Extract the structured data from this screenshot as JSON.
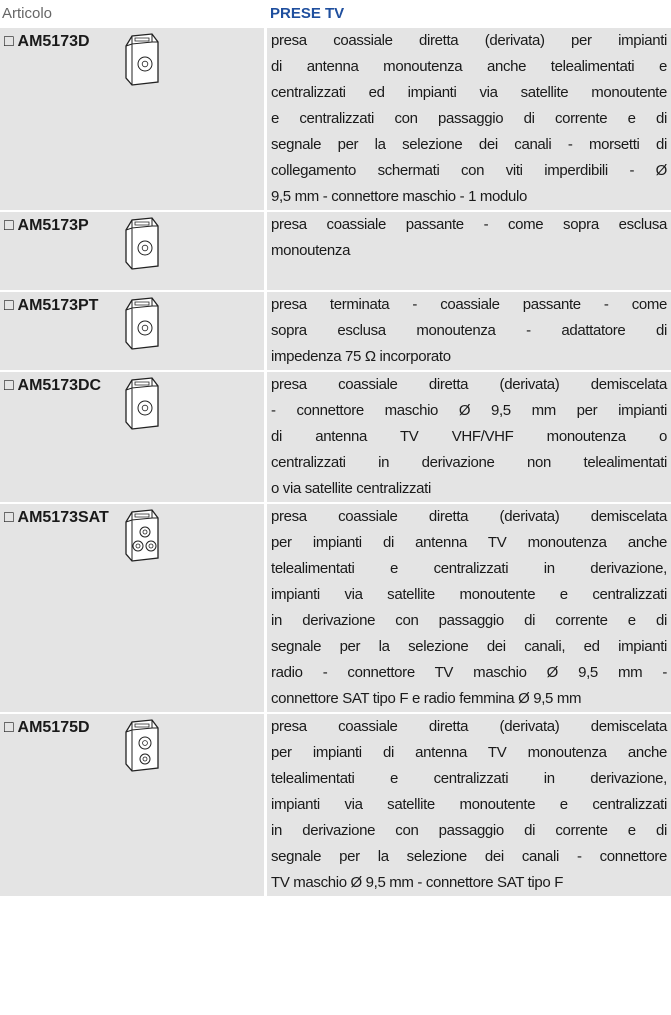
{
  "header": {
    "article_label": "Articolo",
    "section_title": "PRESE TV"
  },
  "rows": [
    {
      "code": "□ AM5173D",
      "description": [
        "presa coassiale diretta (derivata) per impianti",
        "di antenna monoutenza anche telealimentati e",
        "centralizzati ed impianti via satellite monoutente",
        "e centralizzati con passaggio di corrente e di",
        "segnale per la selezione dei canali - morsetti di",
        "collegamento schermati con viti imperdibili - Ø",
        "9,5 mm - connettore maschio - 1 modulo"
      ]
    },
    {
      "code": "□ AM5173P",
      "description": [
        "presa coassiale passante - come sopra esclusa",
        "monoutenza"
      ]
    },
    {
      "code": "□ AM5173PT",
      "description": [
        "presa terminata - coassiale passante - come",
        "sopra esclusa monoutenza - adattatore di",
        "impedenza 75 Ω incorporato"
      ]
    },
    {
      "code": "□ AM5173DC",
      "description": [
        "presa coassiale diretta (derivata) demiscelata",
        "- connettore maschio Ø 9,5 mm per impianti",
        "di antenna TV VHF/VHF monoutenza o",
        "centralizzati in derivazione non telealimentati",
        "o via satellite centralizzati"
      ]
    },
    {
      "code": "□ AM5173SAT",
      "description": [
        "presa coassiale diretta (derivata) demiscelata",
        "per impianti di antenna TV monoutenza anche",
        "telealimentati e centralizzati in derivazione,",
        "impianti via satellite monoutente e centralizzati",
        "in derivazione con passaggio di corrente e di",
        "segnale per  la selezione dei canali, ed impianti",
        "radio - connettore TV maschio Ø 9,5 mm -",
        "connettore SAT tipo F e radio femmina Ø 9,5 mm"
      ]
    },
    {
      "code": "□ AM5175D",
      "description": [
        "presa coassiale diretta (derivata) demiscelata",
        "per impianti di antenna TV monoutenza anche",
        "telealimentati e centralizzati in derivazione,",
        "impianti via satellite monoutente e centralizzati",
        "in derivazione con passaggio di corrente e di",
        "segnale per  la selezione dei canali - connettore",
        "TV maschio Ø 9,5 mm - connettore SAT tipo F"
      ]
    }
  ]
}
